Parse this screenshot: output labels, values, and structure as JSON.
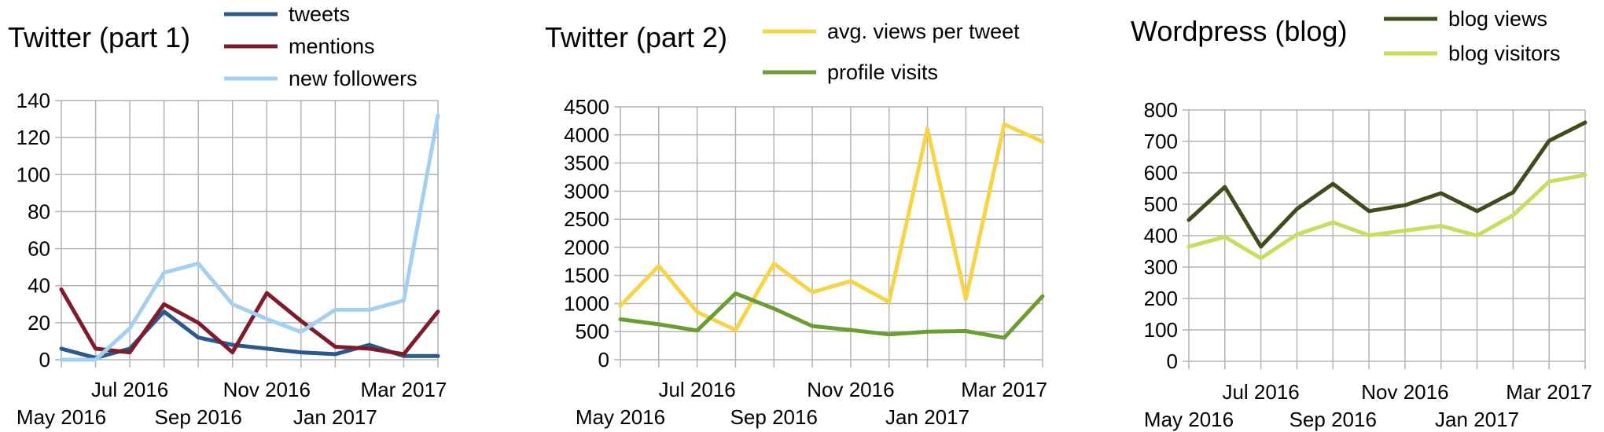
{
  "chart_data": [
    {
      "type": "line",
      "title": "Twitter (part 1)",
      "x": [
        "May 2016",
        "Jun 2016",
        "Jul 2016",
        "Aug 2016",
        "Sep 2016",
        "Oct 2016",
        "Nov 2016",
        "Dec 2016",
        "Jan 2017",
        "Feb 2017",
        "Mar 2017",
        "Apr 2017"
      ],
      "xticks": [
        "May 2016",
        "Jul 2016",
        "Sep 2016",
        "Nov 2016",
        "Jan 2017",
        "Mar 2017"
      ],
      "ylim": [
        0,
        140
      ],
      "yticks": [
        0,
        20,
        40,
        60,
        80,
        100,
        120,
        140
      ],
      "grid": true,
      "legend_position": "top-right",
      "series": [
        {
          "name": "tweets",
          "color": "#2a5a8c",
          "values": [
            6,
            1,
            6,
            26,
            12,
            8,
            6,
            4,
            3,
            8,
            2,
            2
          ]
        },
        {
          "name": "mentions",
          "color": "#7f1c2c",
          "values": [
            38,
            6,
            4,
            30,
            20,
            4,
            36,
            21,
            7,
            6,
            3,
            26
          ]
        },
        {
          "name": "new followers",
          "color": "#a5cff1",
          "values": [
            0,
            0,
            17,
            47,
            52,
            30,
            22,
            15,
            27,
            27,
            32,
            132
          ]
        }
      ]
    },
    {
      "type": "line",
      "title": "Twitter (part 2)",
      "x": [
        "May 2016",
        "Jun 2016",
        "Jul 2016",
        "Aug 2016",
        "Sep 2016",
        "Oct 2016",
        "Nov 2016",
        "Dec 2016",
        "Jan 2017",
        "Feb 2017",
        "Mar 2017",
        "Apr 2017"
      ],
      "xticks": [
        "May 2016",
        "Jul 2016",
        "Sep 2016",
        "Nov 2016",
        "Jan 2017",
        "Mar 2017"
      ],
      "ylim": [
        0,
        4500
      ],
      "yticks": [
        0,
        500,
        1000,
        1500,
        2000,
        2500,
        3000,
        3500,
        4000,
        4500
      ],
      "grid": true,
      "legend_position": "top-right",
      "series": [
        {
          "name": "avg. views per tweet",
          "color": "#f5d445",
          "values": [
            960,
            1670,
            850,
            530,
            1710,
            1200,
            1400,
            1030,
            4110,
            1080,
            4190,
            3880
          ]
        },
        {
          "name": "profile visits",
          "color": "#6b9d35",
          "values": [
            720,
            630,
            520,
            1180,
            910,
            600,
            530,
            450,
            500,
            510,
            390,
            1130
          ]
        }
      ]
    },
    {
      "type": "line",
      "title": "Wordpress (blog)",
      "x": [
        "May 2016",
        "Jun 2016",
        "Jul 2016",
        "Aug 2016",
        "Sep 2016",
        "Oct 2016",
        "Nov 2016",
        "Dec 2016",
        "Jan 2017",
        "Feb 2017",
        "Mar 2017",
        "Apr 2017"
      ],
      "xticks": [
        "May 2016",
        "Jul 2016",
        "Sep 2016",
        "Nov 2016",
        "Jan 2017",
        "Mar 2017"
      ],
      "ylim": [
        0,
        800
      ],
      "yticks": [
        0,
        100,
        200,
        300,
        400,
        500,
        600,
        700,
        800
      ],
      "grid": true,
      "legend_position": "top-right",
      "series": [
        {
          "name": "blog views",
          "color": "#3e4d1c",
          "values": [
            450,
            555,
            365,
            485,
            565,
            478,
            497,
            535,
            478,
            538,
            702,
            760
          ]
        },
        {
          "name": "blog visitors",
          "color": "#c6dd5e",
          "values": [
            365,
            396,
            328,
            404,
            442,
            401,
            416,
            431,
            400,
            465,
            572,
            593
          ]
        }
      ]
    }
  ]
}
